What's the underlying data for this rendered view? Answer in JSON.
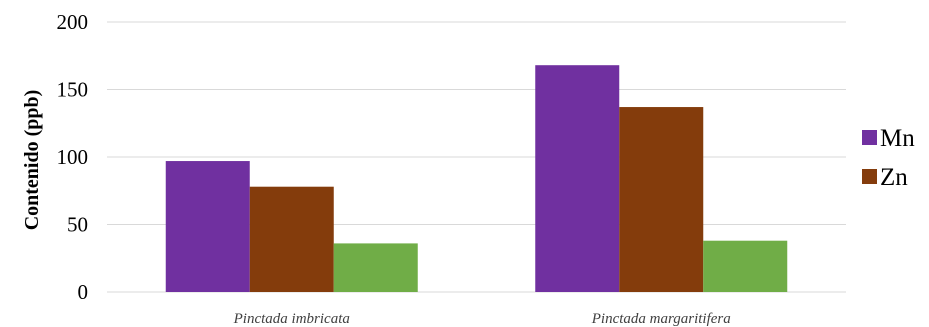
{
  "chart_data": {
    "type": "bar",
    "categories": [
      "Pinctada imbricata",
      "Pinctada margaritifera"
    ],
    "series": [
      {
        "name": "Mn",
        "values": [
          97,
          168
        ],
        "color": "#7030A0"
      },
      {
        "name": "Zn",
        "values": [
          78,
          137
        ],
        "color": "#843C0C"
      },
      {
        "name": "",
        "values": [
          36,
          38
        ],
        "color": "#70AD47"
      }
    ],
    "title": "",
    "xlabel": "",
    "ylabel": "Contenido (ppb)",
    "ylim": [
      0,
      200
    ],
    "yticks": [
      0,
      50,
      100,
      150,
      200
    ],
    "grid": true,
    "legend_position": "right"
  }
}
